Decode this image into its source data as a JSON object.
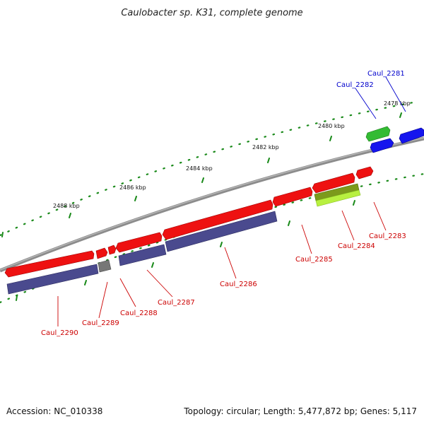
{
  "title": "Caulobacter sp. K31, complete genome",
  "footer": {
    "accession": "Accession: NC_010338",
    "topology": "Topology: circular; Length: 5,477,872 bp; Genes: 5,117"
  },
  "colors": {
    "backbone": "#8c8c8c",
    "tick_green": "#1a8a1a",
    "label_red": "#cc0000",
    "label_blue": "#0000cc",
    "gene_red": "#ee1111",
    "gene_purple": "#4a4a8e",
    "gene_gray": "#777777",
    "gene_blue": "#1515ee",
    "gene_green": "#33bb33",
    "gene_olive": "#7c9a1c",
    "gene_lime": "#b8f040"
  },
  "tick_labels": {
    "t2478": "2478 kbp",
    "t2480": "2480 kbp",
    "t2482": "2482 kbp",
    "t2484": "2484 kbp",
    "t2486": "2486 kbp",
    "t2488": "2488 kbp"
  },
  "genes": {
    "caul_2281": "Caul_2281",
    "caul_2282": "Caul_2282",
    "caul_2283": "Caul_2283",
    "caul_2284": "Caul_2284",
    "caul_2285": "Caul_2285",
    "caul_2286": "Caul_2286",
    "caul_2287": "Caul_2287",
    "caul_2288": "Caul_2288",
    "caul_2289": "Caul_2289",
    "caul_2290": "Caul_2290"
  }
}
